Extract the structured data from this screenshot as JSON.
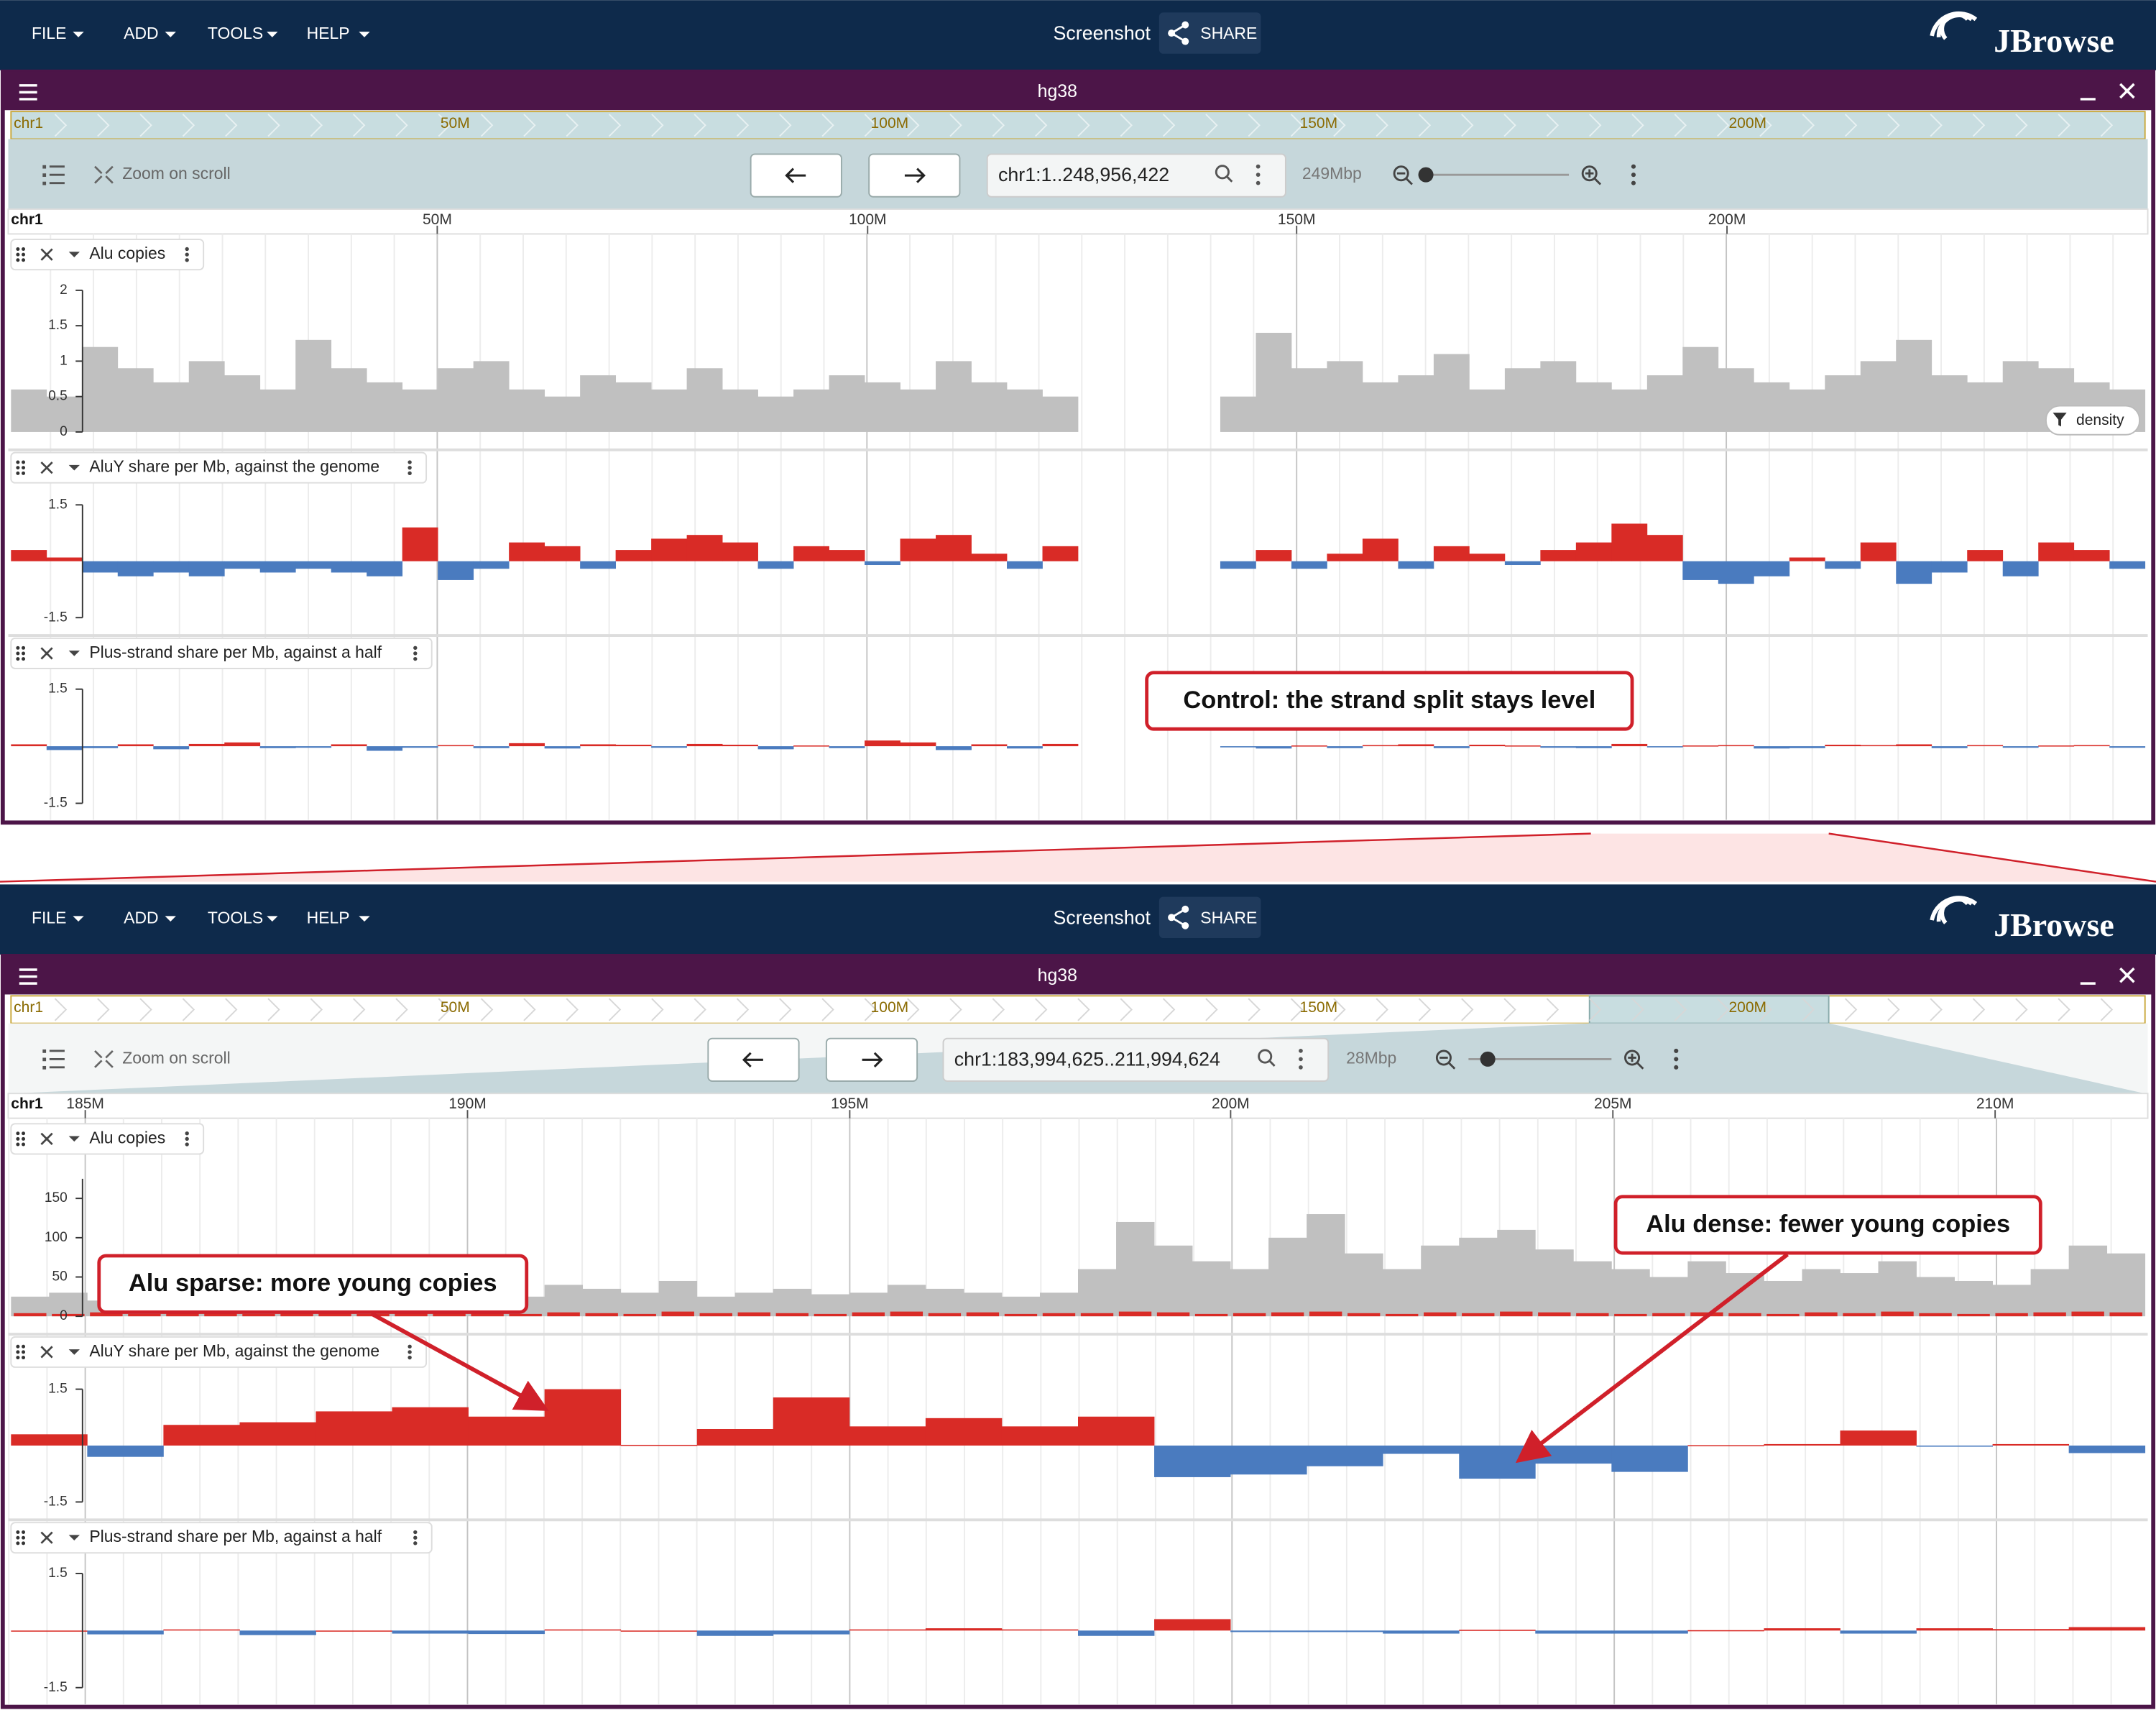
{
  "views": [
    {
      "app_bar": {
        "menus": [
          "FILE",
          "ADD",
          "TOOLS",
          "HELP"
        ],
        "screenshot": "Screenshot",
        "share": "SHARE",
        "brand": "JBrowse"
      },
      "title": "hg38",
      "overview_chr": "chr1",
      "overview_ticks": [
        "50M",
        "100M",
        "150M",
        "200M"
      ],
      "zoom_label": "Zoom on scroll",
      "location": "chr1:1..248,956,422",
      "span": "249Mbp",
      "ruler_chr": "chr1",
      "ruler_ticks": [
        "50M",
        "100M",
        "150M",
        "200M"
      ],
      "tracks": [
        {
          "name": "Alu copies",
          "badge": "density",
          "kind": "density",
          "color": "#c0c0c0",
          "ylim": [
            0,
            2
          ],
          "yticks": [
            0,
            0.5,
            1,
            1.5,
            2
          ],
          "values": [
            0.6,
            0.5,
            1.2,
            0.9,
            0.7,
            1.0,
            0.8,
            0.6,
            1.3,
            0.9,
            0.7,
            0.6,
            0.9,
            1.0,
            0.6,
            0.5,
            0.8,
            0.7,
            0.6,
            0.9,
            0.6,
            0.5,
            0.6,
            0.8,
            0.7,
            0.6,
            1.0,
            0.7,
            0.6,
            0.5,
            null,
            null,
            null,
            null,
            0.5,
            1.4,
            0.9,
            1.0,
            0.7,
            0.8,
            1.1,
            0.6,
            0.9,
            1.0,
            0.7,
            0.6,
            0.8,
            1.2,
            0.9,
            0.7,
            0.6,
            0.8,
            1.0,
            1.3,
            0.8,
            0.7,
            1.0,
            0.9,
            0.7,
            0.6
          ]
        },
        {
          "name": "AluY share per Mb, against the genome",
          "kind": "diverging",
          "pos_color": "#d92b26",
          "neg_color": "#4a7bbf",
          "ylim": [
            -1.5,
            1.5
          ],
          "yticks": [
            -1.5,
            1.5
          ],
          "values": [
            0.3,
            0.1,
            -0.3,
            -0.4,
            -0.3,
            -0.4,
            -0.2,
            -0.3,
            -0.2,
            -0.3,
            -0.4,
            0.9,
            -0.5,
            -0.2,
            0.5,
            0.4,
            -0.2,
            0.3,
            0.6,
            0.7,
            0.5,
            -0.2,
            0.4,
            0.3,
            -0.1,
            0.6,
            0.7,
            0.2,
            -0.2,
            0.4,
            null,
            null,
            null,
            null,
            -0.2,
            0.3,
            -0.2,
            0.2,
            0.6,
            -0.2,
            0.4,
            0.2,
            -0.1,
            0.3,
            0.5,
            1.0,
            0.7,
            -0.5,
            -0.6,
            -0.4,
            0.1,
            -0.2,
            0.5,
            -0.6,
            -0.3,
            0.3,
            -0.4,
            0.5,
            0.3,
            -0.2
          ]
        },
        {
          "name": "Plus-strand share per Mb, against a half",
          "kind": "diverging",
          "pos_color": "#d92b26",
          "neg_color": "#4a7bbf",
          "ylim": [
            -1.5,
            1.5
          ],
          "yticks": [
            -1.5,
            1.5
          ],
          "values": [
            0.05,
            -0.1,
            -0.05,
            0.05,
            -0.08,
            0.06,
            0.1,
            -0.05,
            -0.04,
            0.05,
            -0.12,
            -0.04,
            0.03,
            -0.05,
            0.08,
            -0.06,
            0.05,
            0.04,
            -0.04,
            0.06,
            0.04,
            -0.08,
            0.02,
            -0.05,
            0.15,
            0.1,
            -0.1,
            0.05,
            -0.06,
            0.06,
            null,
            null,
            null,
            null,
            -0.03,
            -0.06,
            0.02,
            -0.05,
            0.03,
            0.05,
            -0.05,
            0.04,
            0.02,
            -0.04,
            -0.05,
            0.06,
            -0.03,
            0.02,
            0.03,
            -0.06,
            -0.05,
            0.04,
            0.03,
            0.05,
            -0.05,
            0.03,
            -0.04,
            0.02,
            0.03,
            -0.04
          ]
        }
      ],
      "annotations": [
        {
          "text": "Control: the strand split stays level"
        }
      ]
    },
    {
      "app_bar": {
        "menus": [
          "FILE",
          "ADD",
          "TOOLS",
          "HELP"
        ],
        "screenshot": "Screenshot",
        "share": "SHARE",
        "brand": "JBrowse"
      },
      "title": "hg38",
      "overview_chr": "chr1",
      "overview_ticks": [
        "50M",
        "100M",
        "150M",
        "200M"
      ],
      "zoom_label": "Zoom on scroll",
      "location": "chr1:183,994,625..211,994,624",
      "span": "28Mbp",
      "ruler_chr": "chr1",
      "ruler_ticks": [
        "185M",
        "190M",
        "195M",
        "200M",
        "205M",
        "210M"
      ],
      "tracks": [
        {
          "name": "Alu copies",
          "kind": "density",
          "color": "#c0c0c0",
          "overlay_color": "#d92b26",
          "ylim": [
            0,
            175
          ],
          "yticks": [
            0,
            50,
            100,
            150
          ],
          "values": [
            25,
            30,
            20,
            35,
            25,
            30,
            22,
            28,
            30,
            25,
            35,
            28,
            30,
            25,
            40,
            35,
            30,
            45,
            25,
            30,
            35,
            28,
            30,
            40,
            35,
            30,
            25,
            30,
            60,
            120,
            90,
            70,
            60,
            100,
            130,
            80,
            60,
            90,
            100,
            110,
            85,
            70,
            60,
            50,
            70,
            55,
            45,
            60,
            55,
            70,
            50,
            45,
            40,
            60,
            90,
            80
          ],
          "overlay_values": [
            4,
            3,
            5,
            3,
            4,
            6,
            3,
            5,
            4,
            3,
            5,
            4,
            6,
            3,
            5,
            4,
            3,
            6,
            4,
            5,
            4,
            3,
            5,
            6,
            4,
            5,
            3,
            4,
            4,
            6,
            5,
            3,
            4,
            5,
            6,
            4,
            3,
            5,
            4,
            6,
            5,
            4,
            3,
            4,
            5,
            4,
            3,
            5,
            4,
            6,
            4,
            3,
            4,
            5,
            6,
            5
          ]
        },
        {
          "name": "AluY share per Mb, against the genome",
          "kind": "diverging",
          "pos_color": "#d92b26",
          "neg_color": "#4a7bbf",
          "ylim": [
            -1.5,
            1.5
          ],
          "yticks": [
            -1.5,
            1.5
          ],
          "values": [
            0.3,
            -0.3,
            0.55,
            0.62,
            0.91,
            1.02,
            0.77,
            1.5,
            0.02,
            0.44,
            1.28,
            0.51,
            0.73,
            0.51,
            0.77,
            -0.84,
            -0.77,
            -0.55,
            -0.22,
            -0.88,
            -0.48,
            -0.7,
            0.01,
            0.04,
            0.4,
            -0.03,
            0.04,
            -0.2
          ]
        },
        {
          "name": "Plus-strand share per Mb, against a half",
          "kind": "diverging",
          "pos_color": "#d92b26",
          "neg_color": "#4a7bbf",
          "ylim": [
            -1.5,
            1.5
          ],
          "yticks": [
            -1.5,
            1.5
          ],
          "values": [
            0,
            -0.1,
            0.03,
            -0.12,
            0,
            -0.08,
            -0.09,
            0.03,
            0,
            -0.14,
            -0.1,
            0.03,
            0.06,
            0.03,
            -0.14,
            0.3,
            -0.04,
            -0.04,
            -0.08,
            0.02,
            -0.08,
            -0.08,
            0.01,
            0.06,
            -0.08,
            0.06,
            0.04,
            0.09
          ]
        }
      ],
      "annotations": [
        {
          "text": "Alu sparse: more young copies"
        },
        {
          "text": "Alu dense: fewer young copies"
        }
      ]
    }
  ]
}
